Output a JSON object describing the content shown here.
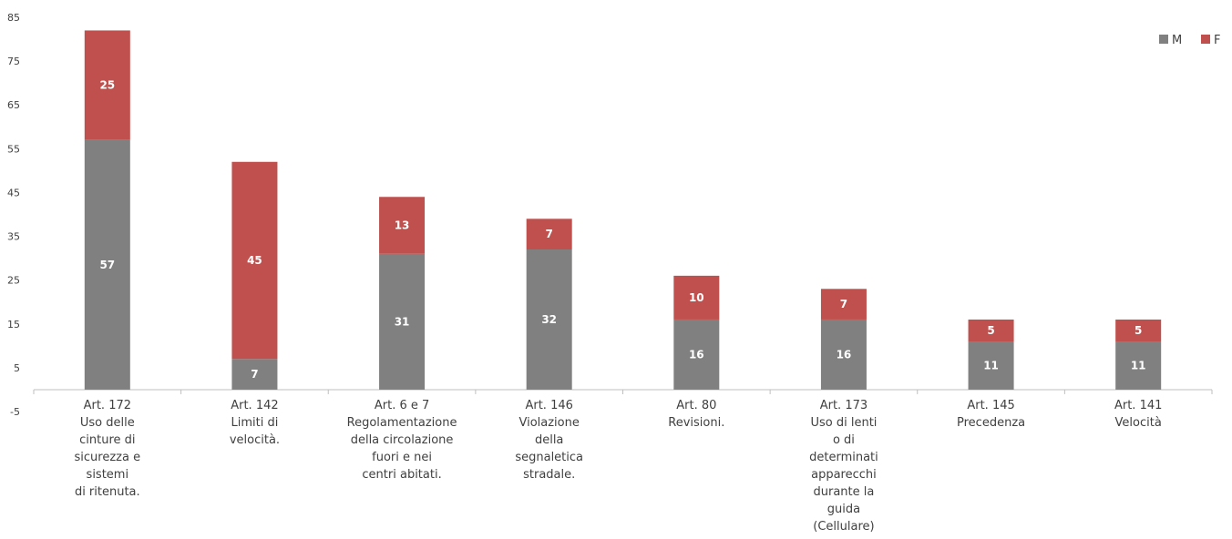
{
  "chart_data": {
    "type": "bar",
    "stacked": true,
    "categories": [
      [
        "Art. 172",
        "Uso delle",
        "cinture di",
        "sicurezza e",
        "sistemi",
        "di ritenuta."
      ],
      [
        "Art. 142",
        "Limiti di",
        "velocità."
      ],
      [
        "Art. 6 e 7",
        "Regolamentazione",
        "della circolazione",
        "fuori e nei",
        "centri abitati."
      ],
      [
        "Art. 146",
        "Violazione",
        "della",
        "segnaletica",
        "stradale."
      ],
      [
        "Art. 80",
        "Revisioni."
      ],
      [
        "Art. 173",
        "Uso di lenti",
        "o di",
        "determinati",
        "apparecchi",
        "durante la",
        "guida",
        "(Cellulare)"
      ],
      [
        "Art. 145",
        "Precedenza"
      ],
      [
        "Art. 141",
        "Velocità"
      ]
    ],
    "series": [
      {
        "name": "M",
        "color": "#808080",
        "values": [
          57,
          7,
          31,
          32,
          16,
          16,
          11,
          11
        ]
      },
      {
        "name": "F",
        "color": "#c0504d",
        "values": [
          25,
          45,
          13,
          7,
          10,
          7,
          5,
          5
        ]
      }
    ],
    "ylim": [
      -5,
      85
    ],
    "yticks": [
      -5,
      5,
      15,
      25,
      35,
      45,
      55,
      65,
      75,
      85
    ],
    "grid": false,
    "legend_position": "top-right",
    "data_labels": true
  }
}
